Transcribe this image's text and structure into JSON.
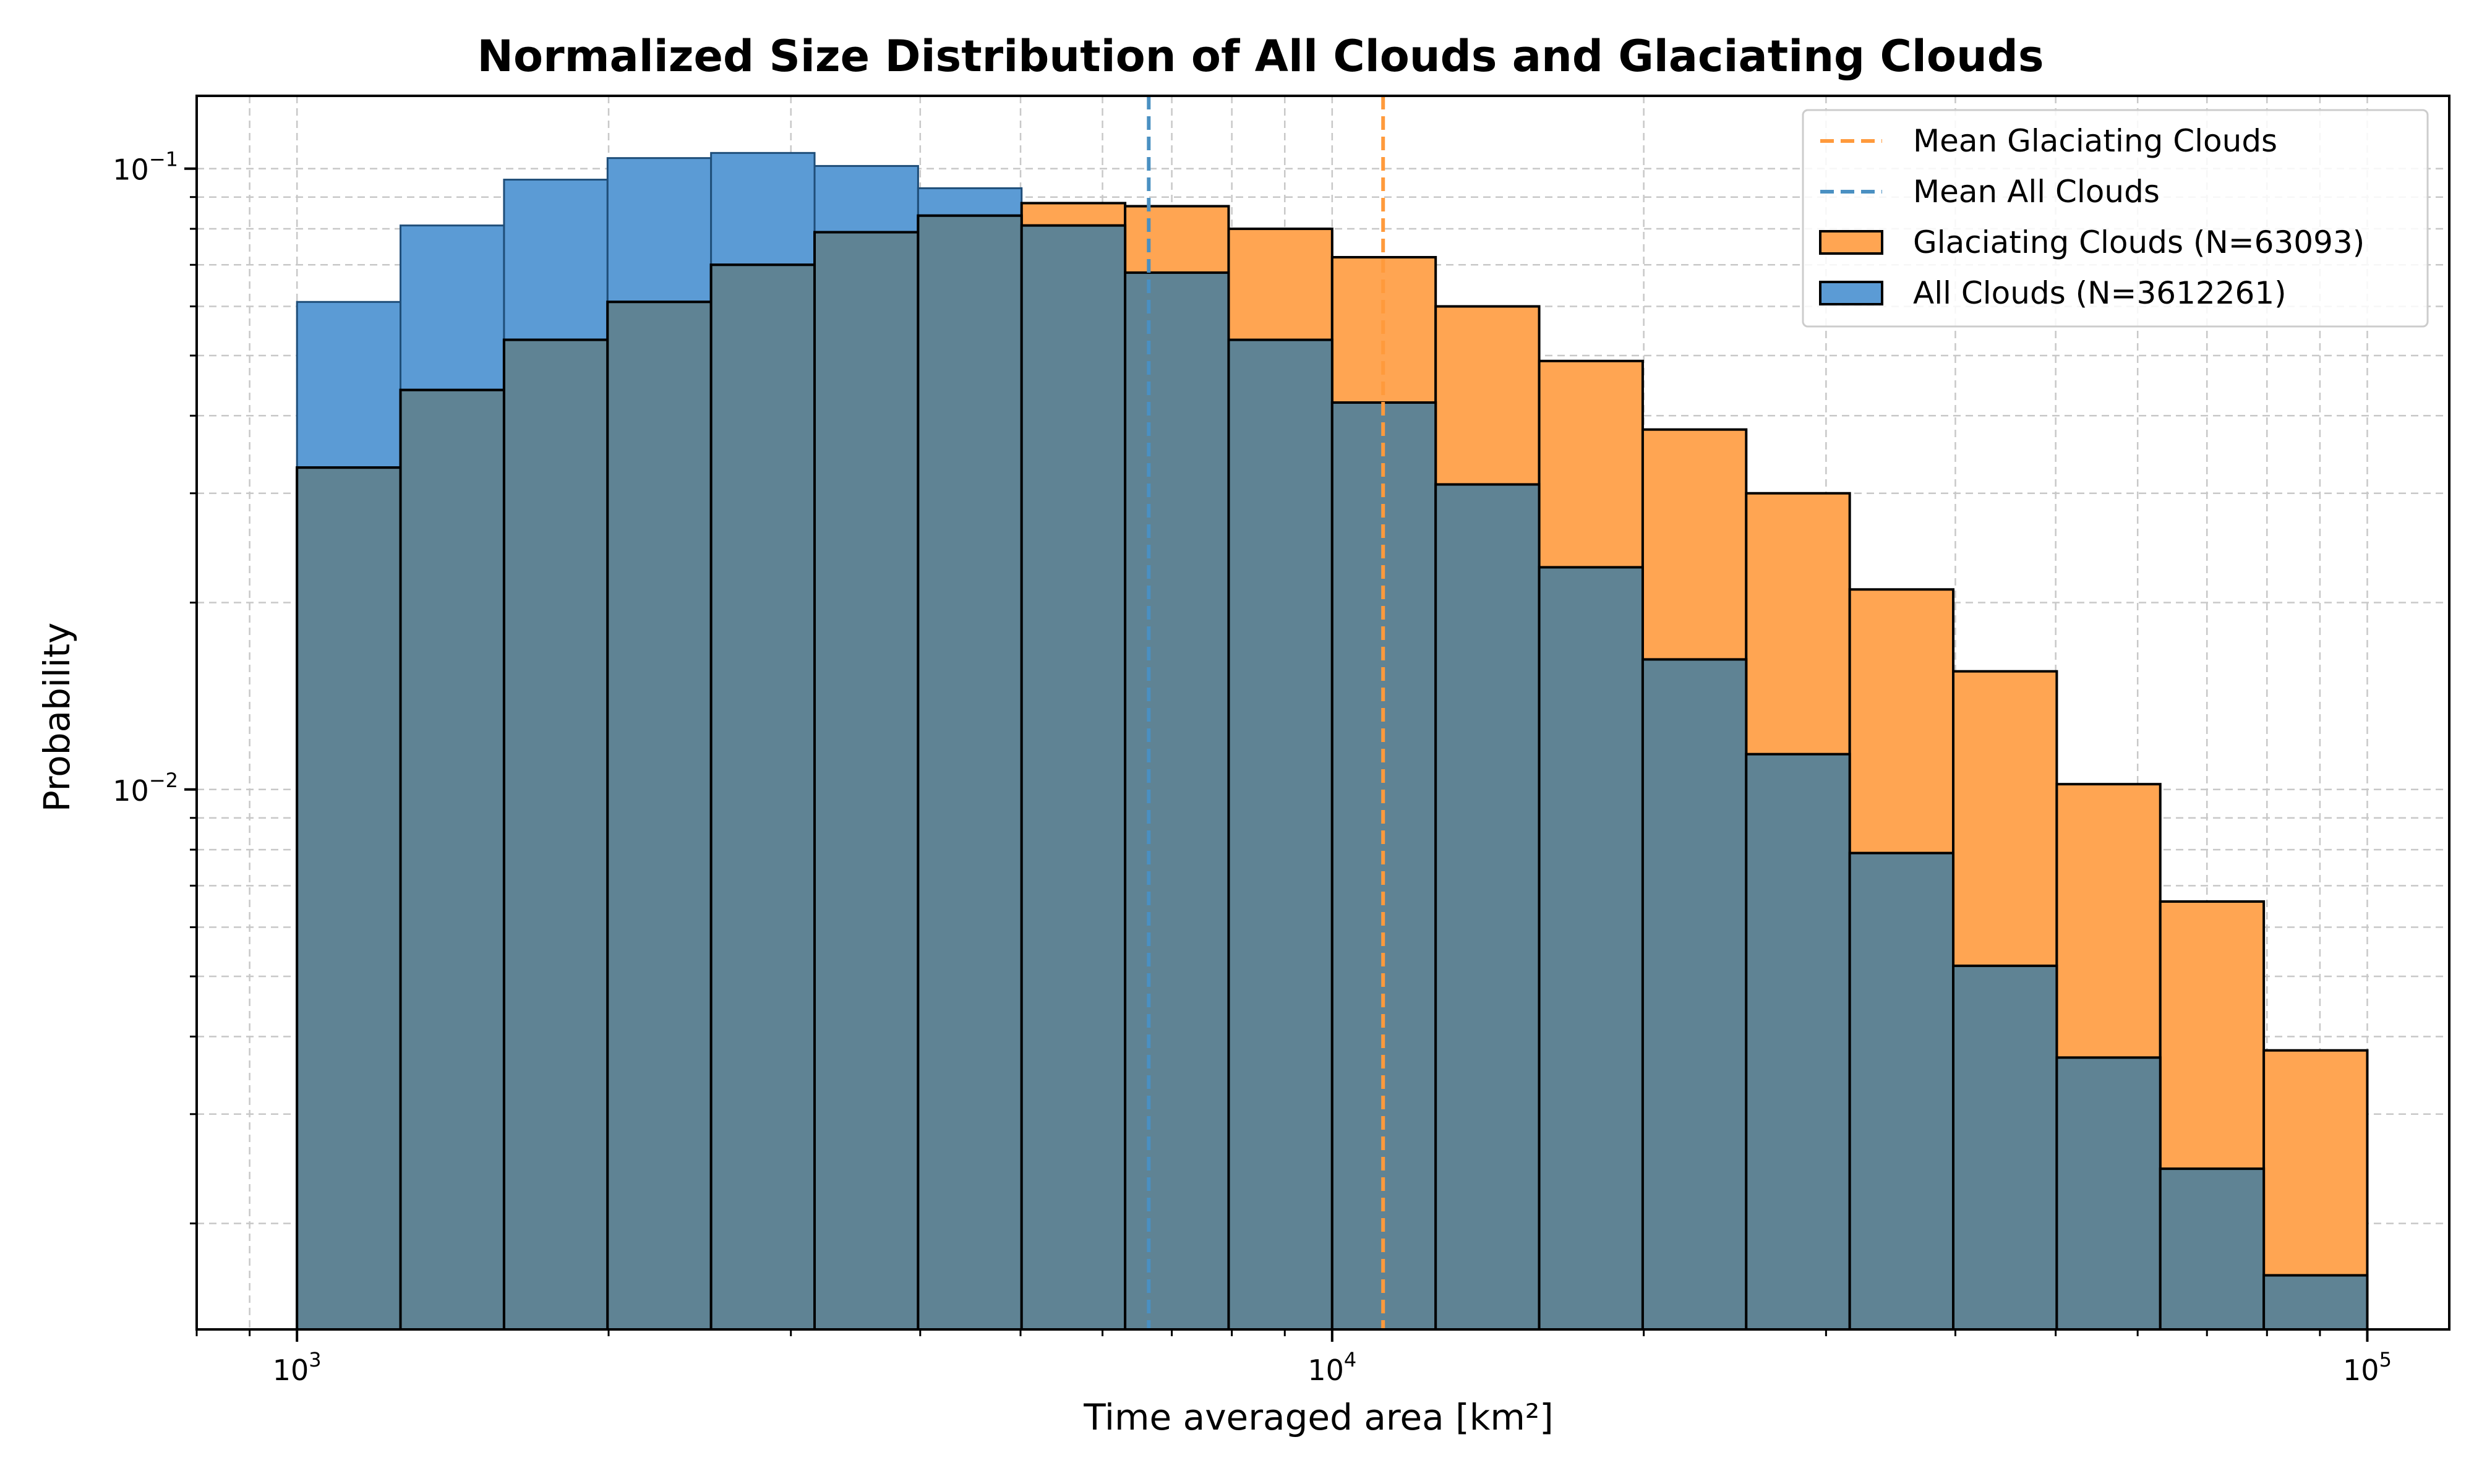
{
  "colors": {
    "all": "#5b9bd5",
    "all_edge": "#1f4e79",
    "glac": "#ffa552",
    "overlap": "#5f8394",
    "mean_all": "#4a90c2",
    "mean_glac": "#ff9a3c",
    "grid": "#c8c8c8"
  },
  "chart_data": {
    "type": "bar",
    "title": "Normalized Size Distribution of All Clouds and Glaciating Clouds",
    "xlabel": "Time averaged area [km²]",
    "ylabel": "Probability",
    "xscale": "log",
    "yscale": "log",
    "xlim": [
      800,
      120000
    ],
    "ylim": [
      0.00135,
      0.131
    ],
    "grid": true,
    "legend_position": "top-right",
    "x_tick_labels": [
      {
        "value": 1000,
        "base": "10",
        "exp": "3"
      },
      {
        "value": 10000,
        "base": "10",
        "exp": "4"
      },
      {
        "value": 100000,
        "base": "10",
        "exp": "5"
      }
    ],
    "y_tick_labels": [
      {
        "value": 0.1,
        "base": "10",
        "exp": "−1"
      },
      {
        "value": 0.01,
        "base": "10",
        "exp": "−2"
      }
    ],
    "bin_edges": [
      1000,
      1258.9,
      1584.9,
      1995.3,
      2511.9,
      3162.3,
      3981.1,
      5011.9,
      6309.6,
      7943.3,
      10000,
      12589,
      15849,
      19953,
      25119,
      31623,
      39811,
      50119,
      63096,
      79433,
      100000
    ],
    "series": [
      {
        "name": "All Clouds (N=3612261)",
        "values": [
          0.061,
          0.081,
          0.096,
          0.104,
          0.106,
          0.101,
          0.093,
          0.081,
          0.068,
          0.053,
          0.042,
          0.031,
          0.0228,
          0.0162,
          0.0114,
          0.0079,
          0.0052,
          0.0037,
          0.00245,
          0.00165
        ]
      },
      {
        "name": "Glaciating Clouds (N=63093)",
        "values": [
          0.033,
          0.044,
          0.053,
          0.061,
          0.07,
          0.079,
          0.084,
          0.088,
          0.087,
          0.08,
          0.072,
          0.06,
          0.049,
          0.038,
          0.03,
          0.021,
          0.0155,
          0.0102,
          0.0066,
          0.0038
        ]
      }
    ],
    "mean_lines": [
      {
        "name": "Mean Glaciating Clouds",
        "x": 11200
      },
      {
        "name": "Mean All Clouds",
        "x": 6650
      }
    ],
    "legend": [
      "Mean Glaciating Clouds",
      "Mean All Clouds",
      "Glaciating Clouds (N=63093)",
      "All Clouds (N=3612261)"
    ]
  }
}
